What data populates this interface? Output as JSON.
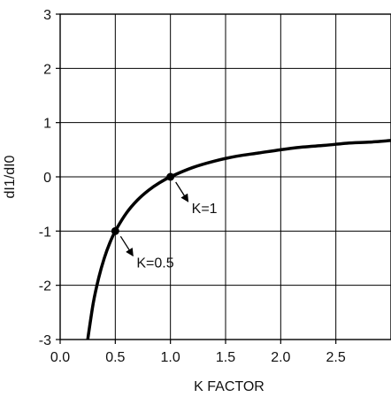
{
  "chart_data": {
    "type": "line",
    "title": "",
    "xlabel": "K FACTOR",
    "ylabel": "dI1/dI0",
    "xlim": [
      0,
      3
    ],
    "ylim": [
      -3,
      3
    ],
    "x_ticks": [
      0,
      0.5,
      1,
      1.5,
      2,
      2.5
    ],
    "x_tick_labels": [
      "0.0",
      "0.5",
      "1.0",
      "1.5",
      "2.0",
      "2.5"
    ],
    "y_ticks": [
      -3,
      -2,
      -1,
      0,
      1,
      2,
      3
    ],
    "y_tick_labels": [
      "-3",
      "-2",
      "-1",
      "0",
      "1",
      "2",
      "3"
    ],
    "grid": true,
    "series": [
      {
        "x": [
          0.25,
          0.3,
          0.35,
          0.4,
          0.45,
          0.5,
          0.6,
          0.7,
          0.8,
          0.9,
          1.0,
          1.2,
          1.4,
          1.6,
          1.8,
          2.0,
          2.2,
          2.4,
          2.6,
          2.8,
          3.0
        ],
        "y": [
          -3.0,
          -2.33,
          -1.86,
          -1.5,
          -1.22,
          -1.0,
          -0.67,
          -0.43,
          -0.25,
          -0.11,
          0.0,
          0.17,
          0.29,
          0.38,
          0.44,
          0.5,
          0.55,
          0.58,
          0.62,
          0.64,
          0.67
        ],
        "color": "#000000"
      }
    ],
    "points": [
      {
        "x": 1.0,
        "y": 0.0,
        "label": "K=1"
      },
      {
        "x": 0.5,
        "y": -1.0,
        "label": "K=0.5"
      }
    ]
  }
}
